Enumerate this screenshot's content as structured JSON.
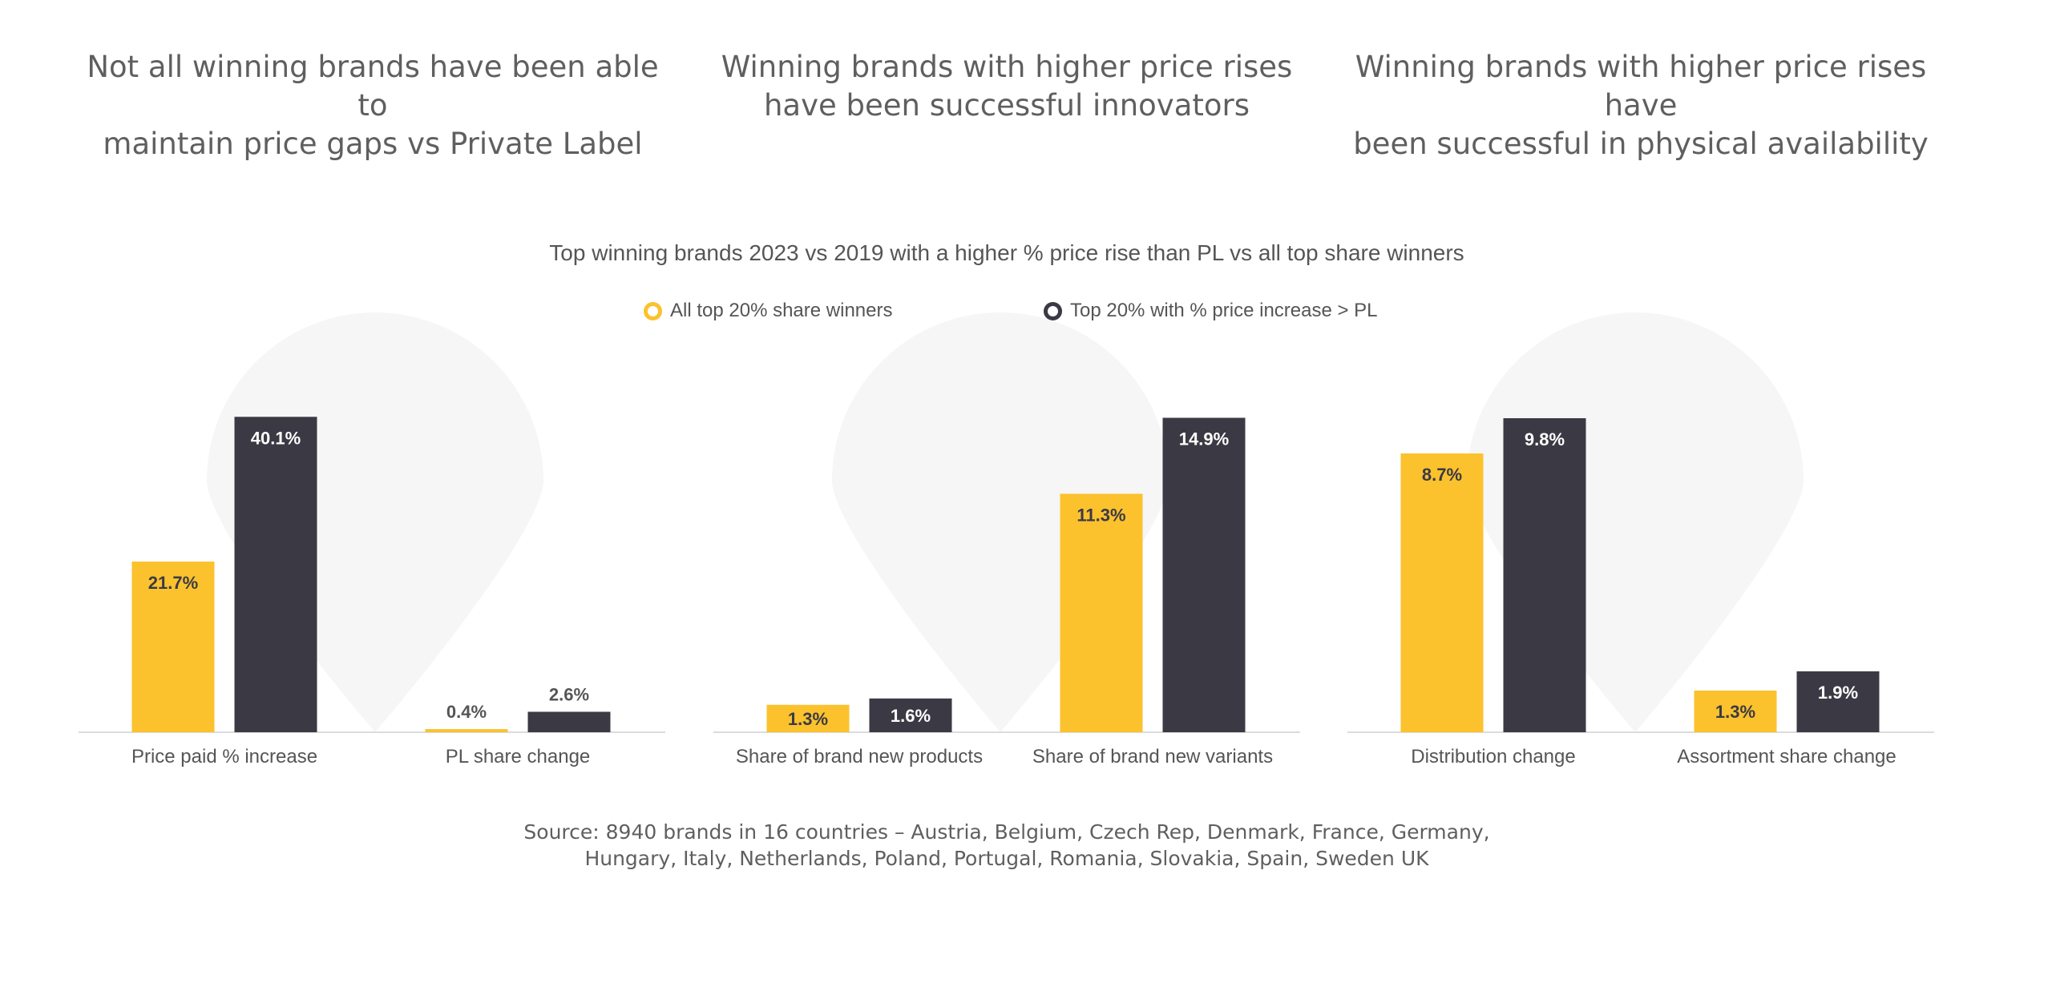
{
  "headings": [
    [
      "Not all winning brands have been able to",
      "maintain price gaps vs Private Label"
    ],
    [
      "Winning brands with higher price rises",
      "have been successful innovators"
    ],
    [
      "Winning brands with higher price rises have",
      "been successful in physical availability"
    ]
  ],
  "chart_data": {
    "type": "bar",
    "title": "Top winning brands 2023 vs 2019 with a higher % price rise than PL vs all top share winners",
    "series": [
      {
        "name": "All top 20% share winners",
        "color": "#fbc22e",
        "label_color": "#3b3a44"
      },
      {
        "name": "Top 20% with % price increase > PL",
        "color": "#3b3a44",
        "label_color": "#ffffff"
      }
    ],
    "legend_position": "top-center",
    "grid": false,
    "panels": [
      {
        "ylim": [
          0,
          44
        ],
        "categories": [
          "Price paid % increase",
          "PL share change"
        ],
        "values": [
          [
            21.7,
            0.4
          ],
          [
            40.1,
            2.6
          ]
        ],
        "labels": [
          [
            "21.7%",
            "0.4%"
          ],
          [
            "40.1%",
            "2.6%"
          ]
        ]
      },
      {
        "ylim": [
          0,
          16.4
        ],
        "categories": [
          "Share of brand new products",
          "Share of brand new variants"
        ],
        "values": [
          [
            1.3,
            11.3
          ],
          [
            1.6,
            14.9
          ]
        ],
        "labels": [
          [
            "1.3%",
            "11.3%"
          ],
          [
            "1.6%",
            "14.9%"
          ]
        ]
      },
      {
        "ylim": [
          0,
          10.8
        ],
        "categories": [
          "Distribution change",
          "Assortment share change"
        ],
        "values": [
          [
            8.7,
            1.3
          ],
          [
            9.8,
            1.9
          ]
        ],
        "labels": [
          [
            "8.7%",
            "1.3%"
          ],
          [
            "9.8%",
            "1.9%"
          ]
        ]
      }
    ]
  },
  "source": [
    "Source: 8940 brands in 16 countries – Austria, Belgium, Czech Rep, Denmark, France, Germany,",
    "Hungary, Italy, Netherlands, Poland, Portugal, Romania, Slovakia, Spain, Sweden UK"
  ]
}
